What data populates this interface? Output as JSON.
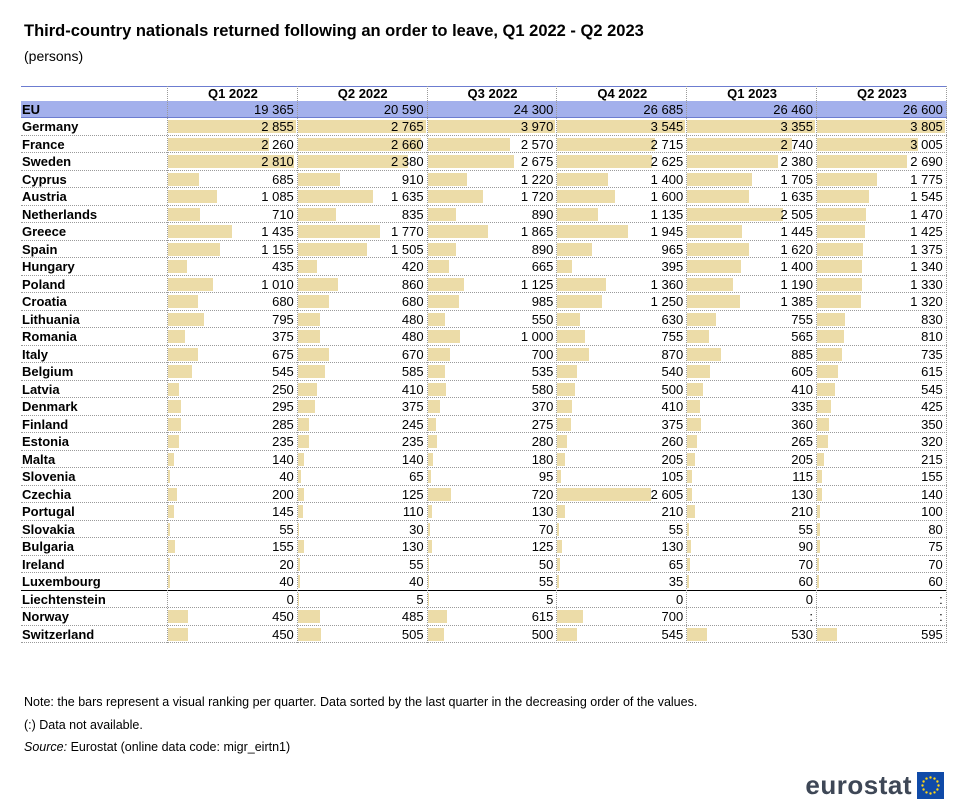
{
  "title": "Third-country nationals returned following an order to leave, Q1 2022 - Q2 2023",
  "subtitle": "(persons)",
  "chart_data": {
    "type": "table",
    "columns": [
      "Q1 2022",
      "Q2 2022",
      "Q3 2022",
      "Q4 2022",
      "Q1 2023",
      "Q2 2023"
    ],
    "rows": [
      {
        "name": "EU",
        "values": [
          "19 365",
          "20 590",
          "24 300",
          "26 685",
          "26 460",
          "26 600"
        ]
      },
      {
        "name": "Germany",
        "values": [
          "2 855",
          "2 765",
          "3 970",
          "3 545",
          "3 355",
          "3 805"
        ]
      },
      {
        "name": "France",
        "values": [
          "2 260",
          "2 660",
          "2 570",
          "2 715",
          "2 740",
          "3 005"
        ]
      },
      {
        "name": "Sweden",
        "values": [
          "2 810",
          "2 380",
          "2 675",
          "2 625",
          "2 380",
          "2 690"
        ]
      },
      {
        "name": "Cyprus",
        "values": [
          "685",
          "910",
          "1 220",
          "1 400",
          "1 705",
          "1 775"
        ]
      },
      {
        "name": "Austria",
        "values": [
          "1 085",
          "1 635",
          "1 720",
          "1 600",
          "1 635",
          "1 545"
        ]
      },
      {
        "name": "Netherlands",
        "values": [
          "710",
          "835",
          "890",
          "1 135",
          "2 505",
          "1 470"
        ]
      },
      {
        "name": "Greece",
        "values": [
          "1 435",
          "1 770",
          "1 865",
          "1 945",
          "1 445",
          "1 425"
        ]
      },
      {
        "name": "Spain",
        "values": [
          "1 155",
          "1 505",
          "890",
          "965",
          "1 620",
          "1 375"
        ]
      },
      {
        "name": "Hungary",
        "values": [
          "435",
          "420",
          "665",
          "395",
          "1 400",
          "1 340"
        ]
      },
      {
        "name": "Poland",
        "values": [
          "1 010",
          "860",
          "1 125",
          "1 360",
          "1 190",
          "1 330"
        ]
      },
      {
        "name": "Croatia",
        "values": [
          "680",
          "680",
          "985",
          "1 250",
          "1 385",
          "1 320"
        ]
      },
      {
        "name": "Lithuania",
        "values": [
          "795",
          "480",
          "550",
          "630",
          "755",
          "830"
        ]
      },
      {
        "name": "Romania",
        "values": [
          "375",
          "480",
          "1 000",
          "755",
          "565",
          "810"
        ]
      },
      {
        "name": "Italy",
        "values": [
          "675",
          "670",
          "700",
          "870",
          "885",
          "735"
        ]
      },
      {
        "name": "Belgium",
        "values": [
          "545",
          "585",
          "535",
          "540",
          "605",
          "615"
        ]
      },
      {
        "name": "Latvia",
        "values": [
          "250",
          "410",
          "580",
          "500",
          "410",
          "545"
        ]
      },
      {
        "name": "Denmark",
        "values": [
          "295",
          "375",
          "370",
          "410",
          "335",
          "425"
        ]
      },
      {
        "name": "Finland",
        "values": [
          "285",
          "245",
          "275",
          "375",
          "360",
          "350"
        ]
      },
      {
        "name": "Estonia",
        "values": [
          "235",
          "235",
          "280",
          "260",
          "265",
          "320"
        ]
      },
      {
        "name": "Malta",
        "values": [
          "140",
          "140",
          "180",
          "205",
          "205",
          "215"
        ]
      },
      {
        "name": "Slovenia",
        "values": [
          "40",
          "65",
          "95",
          "105",
          "115",
          "155"
        ]
      },
      {
        "name": "Czechia",
        "values": [
          "200",
          "125",
          "720",
          "2 605",
          "130",
          "140"
        ]
      },
      {
        "name": "Portugal",
        "values": [
          "145",
          "110",
          "130",
          "210",
          "210",
          "100"
        ]
      },
      {
        "name": "Slovakia",
        "values": [
          "55",
          "30",
          "70",
          "55",
          "55",
          "80"
        ]
      },
      {
        "name": "Bulgaria",
        "values": [
          "155",
          "130",
          "125",
          "130",
          "90",
          "75"
        ]
      },
      {
        "name": "Ireland",
        "values": [
          "20",
          "55",
          "50",
          "65",
          "70",
          "70"
        ]
      },
      {
        "name": "Luxembourg",
        "values": [
          "40",
          "40",
          "55",
          "35",
          "60",
          "60"
        ]
      },
      {
        "name": "Liechtenstein",
        "values": [
          "0",
          "5",
          "5",
          "0",
          "0",
          ":"
        ]
      },
      {
        "name": "Norway",
        "values": [
          "450",
          "485",
          "615",
          "700",
          ":",
          ":"
        ]
      },
      {
        "name": "Switzerland",
        "values": [
          "450",
          "505",
          "500",
          "545",
          "530",
          "595"
        ]
      }
    ]
  },
  "notes": {
    "note1": "Note: the bars represent a visual ranking per quarter. Data sorted by the last quarter in the decreasing order of the values.",
    "note2": "(:) Data not available.",
    "source_label": "Source:",
    "source_text": "Eurostat (online data code: migr_eirtn1)"
  },
  "logo": {
    "text": "eurostat",
    "flag_icon": "eu-flag-icon"
  },
  "colors": {
    "bar": "#ecdca8",
    "eu_row": "#a3b0ec",
    "header_line": "#6c7cd0"
  }
}
